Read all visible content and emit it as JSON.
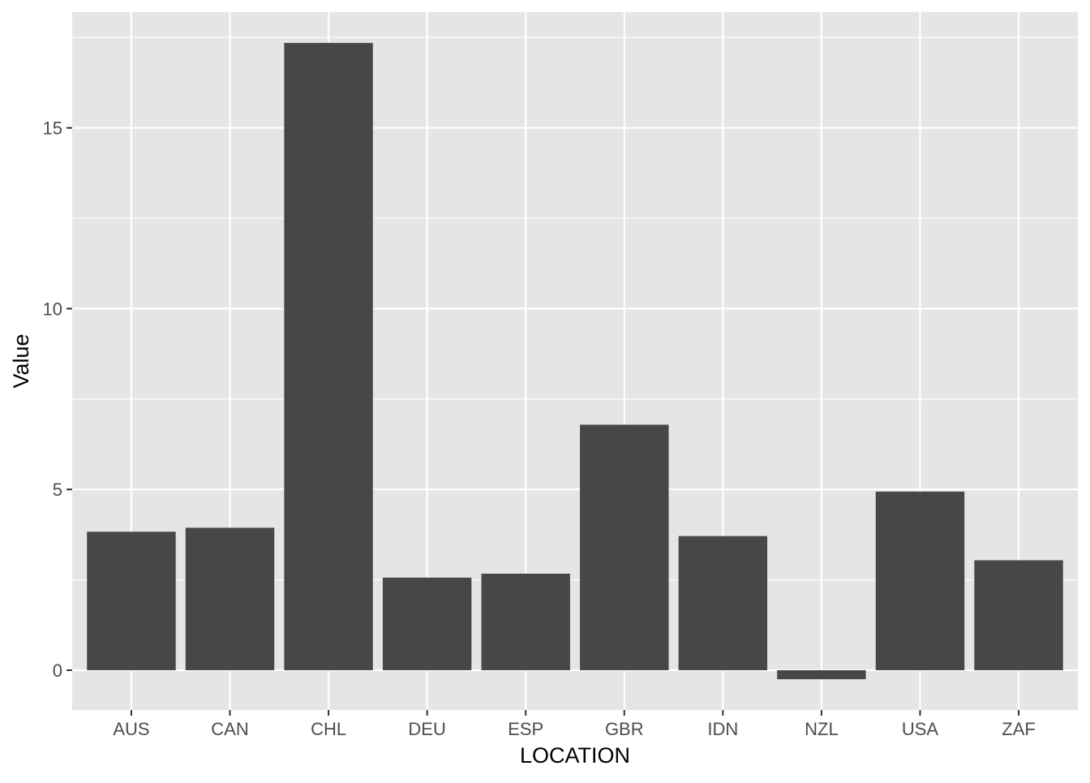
{
  "chart_data": {
    "type": "bar",
    "title": "",
    "xlabel": "LOCATION",
    "ylabel": "Value",
    "categories": [
      "AUS",
      "CAN",
      "CHL",
      "DEU",
      "ESP",
      "GBR",
      "IDN",
      "NZL",
      "USA",
      "ZAF"
    ],
    "values": [
      3.83,
      3.94,
      17.35,
      2.56,
      2.67,
      6.79,
      3.71,
      -0.25,
      4.94,
      3.04
    ],
    "ylim": [
      -1.1,
      18.2
    ],
    "yticks": [
      0,
      5,
      10,
      15
    ],
    "grid": true,
    "legend": "none",
    "colors": {
      "panel": "#e5e5e5",
      "grid": "#ffffff",
      "bar": "#474747",
      "tick_text": "#4d4d4d",
      "tick_mark": "#333333"
    }
  }
}
